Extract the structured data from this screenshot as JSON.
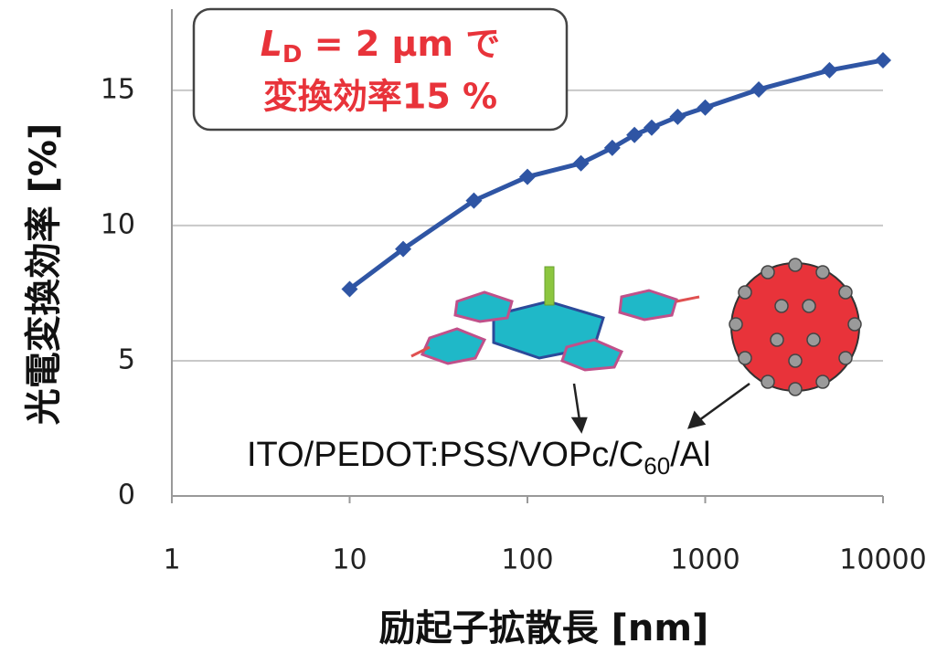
{
  "chart_data": {
    "type": "line",
    "xlabel": "励起子拡散長 [nm]",
    "ylabel": "光電変換効率 [%]",
    "x": [
      10,
      20,
      50,
      100,
      200,
      300,
      400,
      500,
      700,
      1000,
      2000,
      5000,
      10000
    ],
    "values": [
      7.65,
      9.13,
      10.92,
      11.8,
      12.3,
      12.87,
      13.35,
      13.62,
      14.02,
      14.36,
      15.03,
      15.74,
      16.11
    ],
    "color": "#2f55a4",
    "xscale": "log",
    "xlim": [
      1,
      10000
    ],
    "xticks": [
      1,
      10,
      100,
      1000,
      10000
    ],
    "ylim": [
      0,
      18
    ],
    "yticks": [
      0,
      5,
      10,
      15
    ],
    "grid": true,
    "annotation": {
      "symbol": "L",
      "subscript": "D",
      "rest": " = 2 μm で",
      "line2": "変換効率15 %"
    },
    "device": {
      "main": "ITO/PEDOT:PSS/VOPc/C",
      "subscript": "60",
      "tail": "/Al"
    }
  }
}
